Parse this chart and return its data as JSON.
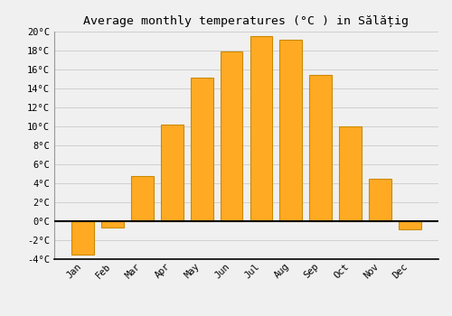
{
  "title": "Average monthly temperatures (°C ) in Sălățig",
  "months": [
    "Jan",
    "Feb",
    "Mar",
    "Apr",
    "May",
    "Jun",
    "Jul",
    "Aug",
    "Sep",
    "Oct",
    "Nov",
    "Dec"
  ],
  "values": [
    -3.5,
    -0.7,
    4.8,
    10.2,
    15.1,
    17.9,
    19.5,
    19.1,
    15.4,
    10.0,
    4.5,
    -0.9
  ],
  "bar_color": "#FFAA22",
  "bar_edge_color": "#CC8800",
  "ylim": [
    -4,
    20
  ],
  "yticks": [
    -4,
    -2,
    0,
    2,
    4,
    6,
    8,
    10,
    12,
    14,
    16,
    18,
    20
  ],
  "ytick_labels": [
    "-4°C",
    "-2°C",
    "0°C",
    "2°C",
    "4°C",
    "6°C",
    "8°C",
    "10°C",
    "12°C",
    "14°C",
    "16°C",
    "18°C",
    "20°C"
  ],
  "bg_color": "#f0f0f0",
  "grid_color": "#d0d0d0",
  "title_fontsize": 9.5,
  "tick_fontsize": 7.5
}
